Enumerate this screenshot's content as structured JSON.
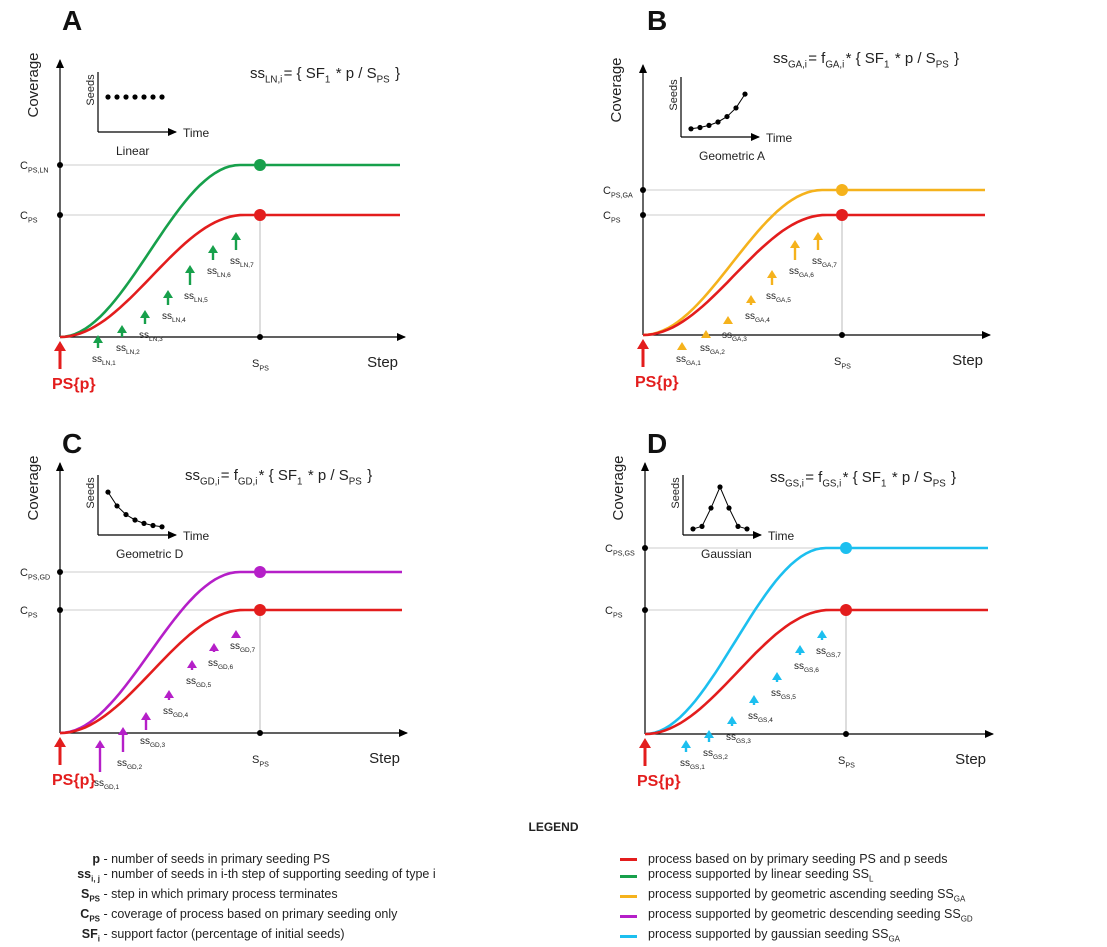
{
  "colors": {
    "red": "#e31d1d",
    "green": "#17a04b",
    "yellow": "#f5b21c",
    "purple": "#b51fc8",
    "cyan": "#1cbfef"
  },
  "common": {
    "y_axis": "Coverage",
    "x_axis": "Step",
    "ps_label": "PS{p}",
    "cps": "PS",
    "sps": "PS",
    "seeds": "Seeds",
    "time": "Time"
  },
  "panels": [
    {
      "letter": "A",
      "inset": "Linear",
      "upper_sub": "PS,LN",
      "formula_sub": "LN,i",
      "formula_factor": "",
      "step_prefix": "LN"
    },
    {
      "letter": "B",
      "inset": "Geometric A",
      "upper_sub": "PS,GA",
      "formula_sub": "GA,i",
      "formula_factor": "GA,i",
      "step_prefix": "GA"
    },
    {
      "letter": "C",
      "inset": "Geometric D",
      "upper_sub": "PS,GD",
      "formula_sub": "GD,i",
      "formula_factor": "GD,i",
      "step_prefix": "GD"
    },
    {
      "letter": "D",
      "inset": "Gaussian",
      "upper_sub": "PS,GS",
      "formula_sub": "GS,i",
      "formula_factor": "GS,i",
      "step_prefix": "GS"
    }
  ],
  "legend": {
    "title": "LEGEND",
    "symbols": [
      {
        "sym": "p",
        "sub": "",
        "text": " - number of seeds in primary seeding PS"
      },
      {
        "sym": "ss",
        "sub": "i, j",
        "text": " - number of seeds in i-th step of supporting seeding of type i"
      },
      {
        "sym": "S",
        "sub": "PS",
        "text": " - step in which primary process terminates"
      },
      {
        "sym": "C",
        "sub": "PS",
        "text": " - coverage of process based on primary seeding only"
      },
      {
        "sym": "SF",
        "sub": "i",
        "text": " - support factor (percentage of initial seeds)"
      }
    ],
    "lines": [
      {
        "color": "#e31d1d",
        "text": "process based on by primary seeding PS and p seeds",
        "sub": ""
      },
      {
        "color": "#17a04b",
        "text": "process supported by linear seeding SS",
        "sub": "L"
      },
      {
        "color": "#f5b21c",
        "text": "process supported by geometric ascending seeding SS",
        "sub": "GA"
      },
      {
        "color": "#b51fc8",
        "text": "process supported by geometric descending seeding SS",
        "sub": "GD"
      },
      {
        "color": "#1cbfef",
        "text": "process supported by gaussian seeding  SS",
        "sub": "GA"
      }
    ]
  }
}
